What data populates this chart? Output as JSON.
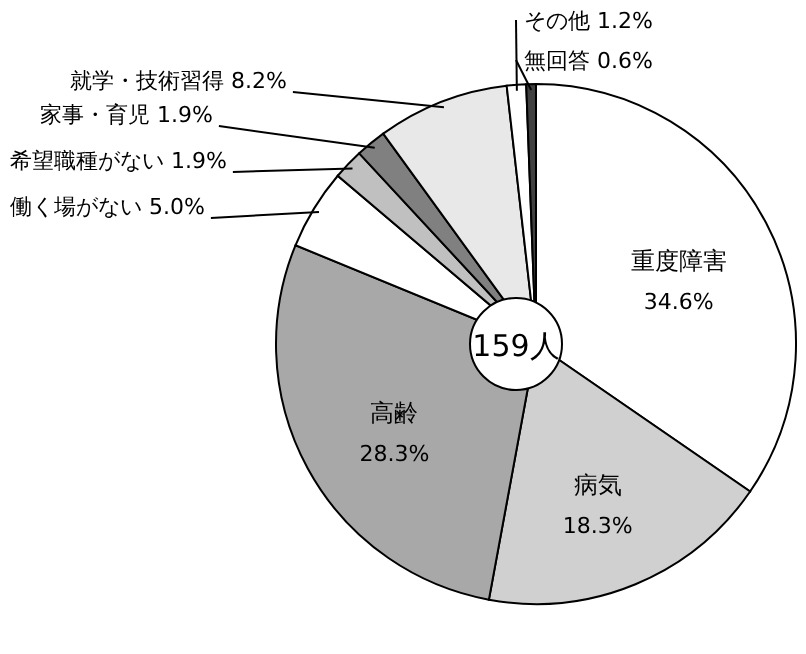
{
  "chart_data": {
    "type": "pie",
    "categories": [
      "重度障害",
      "病気",
      "高齢",
      "働く場がない",
      "希望職種がない",
      "家事・育児",
      "就学・技術習得",
      "その他",
      "無回答"
    ],
    "values": [
      34.6,
      18.3,
      28.3,
      5.0,
      1.9,
      1.9,
      8.2,
      1.2,
      0.6
    ],
    "value_labels": [
      "34.6%",
      "18.3%",
      "28.3%",
      "5.0%",
      "1.9%",
      "1.9%",
      "8.2%",
      "1.2%",
      "0.6%"
    ],
    "colors": [
      "#ffffff",
      "#d0d0d0",
      "#a8a8a8",
      "#ffffff",
      "#c0c0c0",
      "#808080",
      "#e8e8e8",
      "#ffffff",
      "#404040"
    ],
    "annotations": [
      "159人"
    ]
  }
}
